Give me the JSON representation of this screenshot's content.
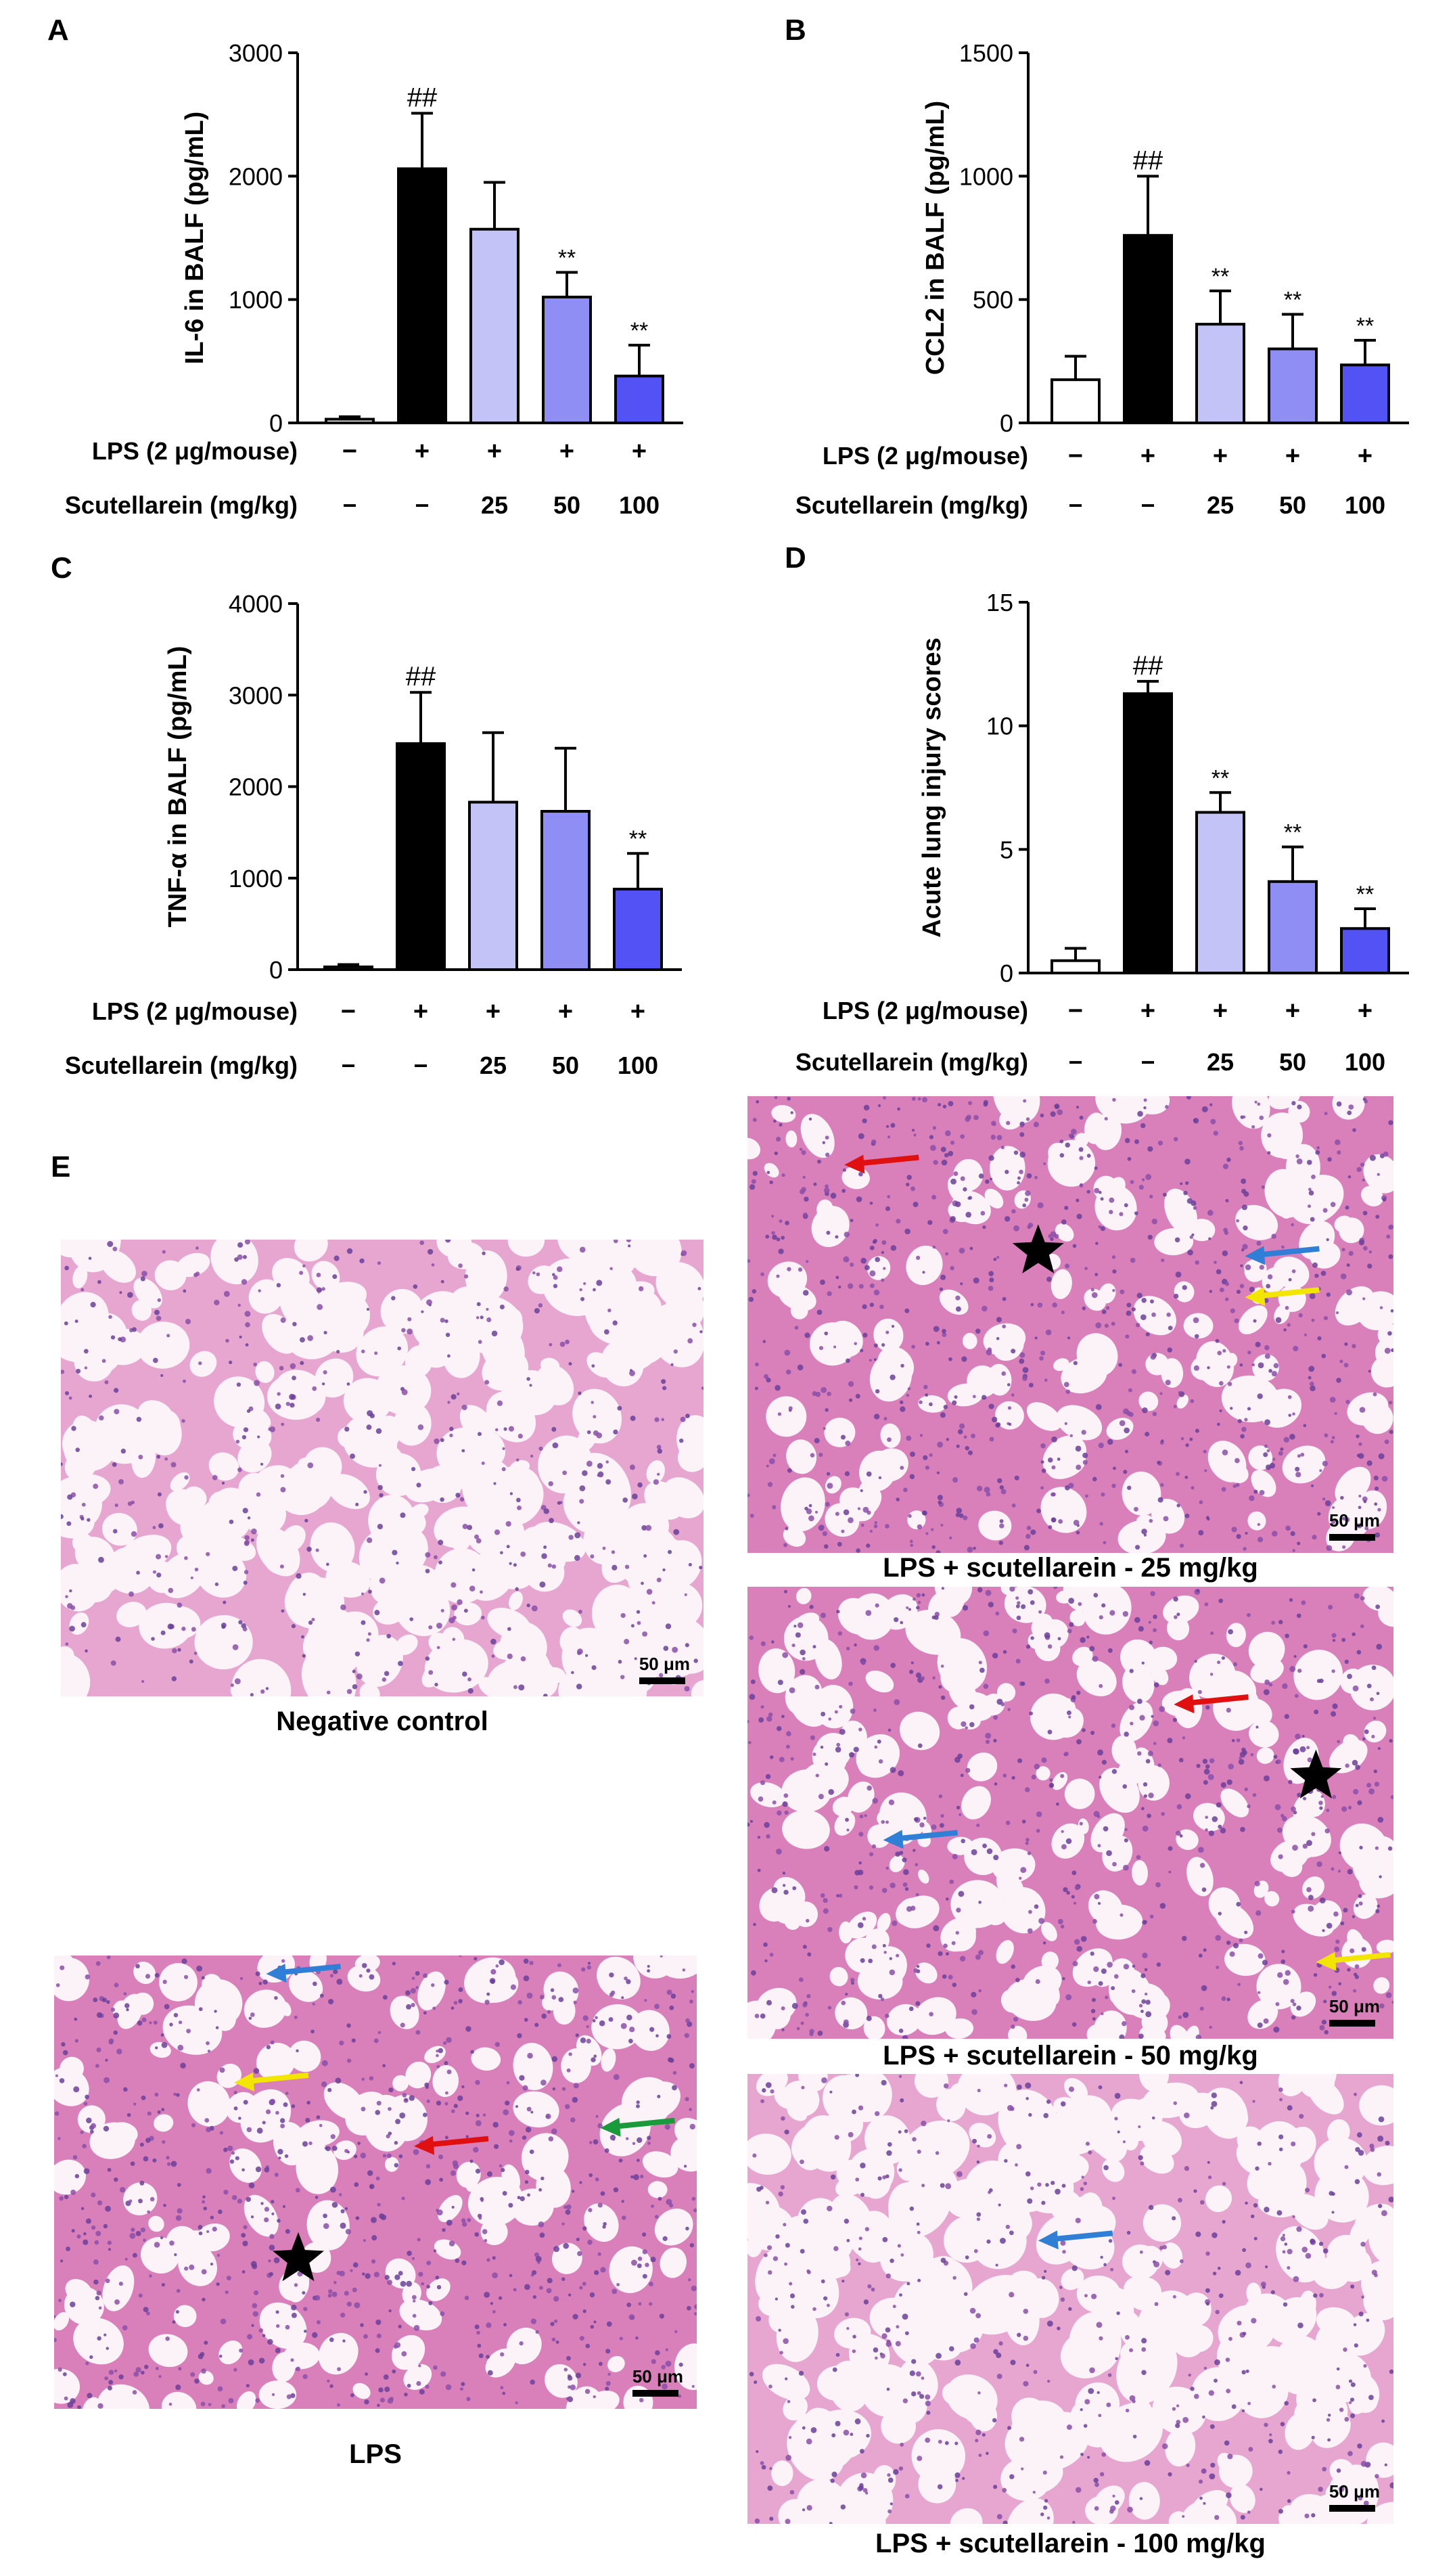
{
  "panels": {
    "a": "A",
    "b": "B",
    "c": "C",
    "d": "D",
    "e": "E"
  },
  "conditions": {
    "lps_label": "LPS (2 μg/mouse)",
    "scut_label": "Scutellarein (mg/kg)",
    "lps_values": [
      "−",
      "+",
      "+",
      "+",
      "+"
    ],
    "scut_values": [
      "−",
      "−",
      "25",
      "50",
      "100"
    ]
  },
  "chart_data": [
    {
      "type": "bar",
      "ylabel": "IL-6 in BALF (pg/mL)",
      "ylim": [
        0,
        3000
      ],
      "yticks": [
        0,
        1000,
        2000,
        3000
      ],
      "values": [
        30,
        2060,
        1570,
        1020,
        380
      ],
      "errors": [
        20,
        450,
        380,
        200,
        250
      ],
      "annotations": [
        "",
        "##",
        "",
        "**",
        "**"
      ],
      "colors": [
        "#ffffff",
        "#000000",
        "#c3c3f7",
        "#8e8ef5",
        "#5252f5"
      ]
    },
    {
      "type": "bar",
      "ylabel": "CCL2 in BALF (pg/mL)",
      "ylim": [
        0,
        1500
      ],
      "yticks": [
        0,
        500,
        1000,
        1500
      ],
      "values": [
        175,
        760,
        400,
        300,
        235
      ],
      "errors": [
        95,
        240,
        135,
        140,
        100
      ],
      "annotations": [
        "",
        "##",
        "**",
        "**",
        "**"
      ],
      "colors": [
        "#ffffff",
        "#000000",
        "#c3c3f7",
        "#8e8ef5",
        "#5252f5"
      ]
    },
    {
      "type": "bar",
      "ylabel": "TNF-α in BALF (pg/mL)",
      "ylim": [
        0,
        4000
      ],
      "yticks": [
        0,
        1000,
        2000,
        3000,
        4000
      ],
      "values": [
        30,
        2470,
        1830,
        1730,
        880
      ],
      "errors": [
        25,
        560,
        760,
        690,
        390
      ],
      "annotations": [
        "",
        "##",
        "",
        "",
        "**"
      ],
      "colors": [
        "#ffffff",
        "#000000",
        "#c3c3f7",
        "#8e8ef5",
        "#5252f5"
      ]
    },
    {
      "type": "bar",
      "ylabel": "Acute lung injury scores",
      "ylim": [
        0,
        15
      ],
      "yticks": [
        0,
        5,
        10,
        15
      ],
      "values": [
        0.5,
        11.3,
        6.5,
        3.7,
        1.8
      ],
      "errors": [
        0.5,
        0.5,
        0.8,
        1.4,
        0.8
      ],
      "annotations": [
        "",
        "##",
        "**",
        "**",
        "**"
      ],
      "colors": [
        "#ffffff",
        "#000000",
        "#c3c3f7",
        "#8e8ef5",
        "#5252f5"
      ]
    }
  ],
  "images": [
    {
      "caption": "Negative control",
      "scale": "50 μm",
      "tissue": "normal",
      "star": false,
      "arrows": []
    },
    {
      "caption": "LPS",
      "scale": "50 μm",
      "tissue": "dense",
      "star": true,
      "arrows": [
        "#2f7fd6",
        "#f2e600",
        "#e01010",
        "#1a9a3a"
      ]
    },
    {
      "caption": "LPS + scutellarein - 25 mg/kg",
      "scale": "50 μm",
      "tissue": "dense",
      "star": true,
      "arrows": [
        "#e01010",
        "#2f7fd6",
        "#f2e600"
      ]
    },
    {
      "caption": "LPS + scutellarein - 50 mg/kg",
      "scale": "50 μm",
      "tissue": "medium",
      "star": true,
      "arrows": [
        "#e01010",
        "#2f7fd6",
        "#f2e600"
      ]
    },
    {
      "caption": "LPS + scutellarein - 100 mg/kg",
      "scale": "50 μm",
      "tissue": "light",
      "star": false,
      "arrows": [
        "#2f7fd6"
      ]
    }
  ]
}
